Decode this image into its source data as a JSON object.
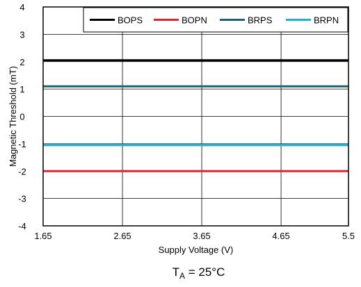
{
  "chart_data": {
    "type": "line",
    "xlabel": "Supply Voltage (V)",
    "ylabel": "Magnetic Threshold (mT)",
    "xlim": [
      1.65,
      5.5
    ],
    "ylim": [
      -4,
      4
    ],
    "x_ticks": [
      "1.65",
      "2.65",
      "3.65",
      "4.65",
      "5.5"
    ],
    "x_tick_values": [
      1.65,
      2.65,
      3.65,
      4.65,
      5.5
    ],
    "y_ticks": [
      "4",
      "3",
      "2",
      "1",
      "0",
      "-1",
      "-2",
      "-3",
      "-4"
    ],
    "y_tick_values": [
      4,
      3,
      2,
      1,
      0,
      -1,
      -2,
      -3,
      -4
    ],
    "grid": true,
    "legend_position": "top-right",
    "x": [
      1.65,
      5.5
    ],
    "series": [
      {
        "name": "BOPS",
        "color": "#000000",
        "values": [
          2.05,
          2.05
        ]
      },
      {
        "name": "BOPN",
        "color": "#e8222a",
        "values": [
          -2.0,
          -2.0
        ]
      },
      {
        "name": "BRPS",
        "color": "#1f5f6e",
        "values": [
          1.1,
          1.1
        ]
      },
      {
        "name": "BRPN",
        "color": "#1bb5c9",
        "values": [
          -1.05,
          -1.05
        ]
      }
    ],
    "caption": {
      "main": "T",
      "sub": "A",
      "rest": " = 25°C"
    }
  }
}
